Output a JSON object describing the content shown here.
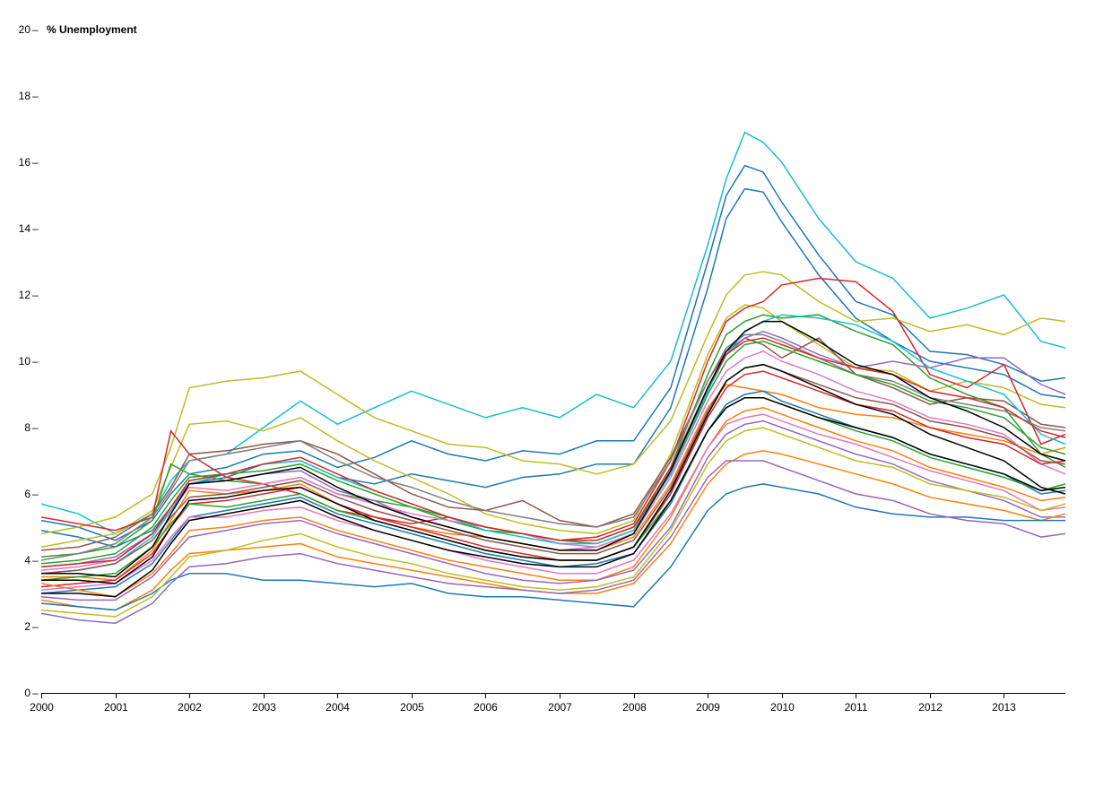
{
  "chart_data": {
    "type": "line",
    "title": "",
    "xlabel": "",
    "ylabel": "% Unemployment",
    "xlim": [
      2000,
      2013.83
    ],
    "ylim": [
      0,
      20
    ],
    "x_ticks": [
      "2000",
      "2001",
      "2002",
      "2003",
      "2004",
      "2005",
      "2006",
      "2007",
      "2008",
      "2009",
      "2010",
      "2011",
      "2012",
      "2013"
    ],
    "y_ticks": [
      "0",
      "2",
      "4",
      "6",
      "8",
      "10",
      "12",
      "14",
      "16",
      "18",
      "20"
    ],
    "grid": false,
    "legend": "none",
    "x": [
      2000,
      2000.5,
      2001,
      2001.5,
      2001.75,
      2002,
      2002.5,
      2003,
      2003.5,
      2004,
      2004.5,
      2005,
      2005.5,
      2006,
      2006.5,
      2007,
      2007.5,
      2008,
      2008.5,
      2009,
      2009.25,
      2009.5,
      2009.75,
      2010,
      2010.5,
      2011,
      2011.5,
      2012,
      2012.5,
      2013,
      2013.5,
      2013.83
    ],
    "series": [
      {
        "color": "#17becf",
        "values": [
          5.7,
          5.4,
          4.8,
          5.4,
          6.4,
          7.0,
          7.2,
          8.0,
          8.8,
          8.1,
          8.6,
          9.1,
          8.7,
          8.3,
          8.6,
          8.3,
          9.0,
          8.6,
          10.0,
          13.5,
          15.5,
          16.9,
          16.6,
          16.0,
          14.3,
          13.0,
          12.5,
          11.3,
          11.6,
          12.0,
          10.6,
          10.4
        ]
      },
      {
        "color": "#1f77b4",
        "values": [
          5.2,
          5.0,
          4.6,
          5.2,
          6.0,
          6.6,
          6.8,
          7.2,
          7.3,
          6.8,
          7.1,
          7.6,
          7.2,
          7.0,
          7.3,
          7.2,
          7.6,
          7.6,
          9.2,
          13.0,
          15.0,
          15.9,
          15.7,
          14.8,
          13.2,
          11.8,
          11.4,
          10.3,
          10.2,
          9.9,
          9.4,
          9.5
        ]
      },
      {
        "color": "#1f77b4",
        "values": [
          4.9,
          4.7,
          4.4,
          4.9,
          5.6,
          6.3,
          6.5,
          6.9,
          7.0,
          6.5,
          6.3,
          6.6,
          6.4,
          6.2,
          6.5,
          6.6,
          6.9,
          6.9,
          8.6,
          12.2,
          14.3,
          15.2,
          15.1,
          14.2,
          12.6,
          11.3,
          10.6,
          10.0,
          9.8,
          9.6,
          9.0,
          8.9
        ]
      },
      {
        "color": "#bcbd22",
        "values": [
          4.8,
          5.0,
          5.3,
          6.0,
          7.4,
          9.2,
          9.4,
          9.5,
          9.7,
          9.0,
          8.3,
          7.9,
          7.5,
          7.4,
          7.0,
          6.9,
          6.6,
          6.9,
          8.2,
          10.8,
          12.0,
          12.6,
          12.7,
          12.6,
          11.8,
          11.2,
          11.3,
          10.9,
          11.1,
          10.8,
          11.3,
          11.2
        ]
      },
      {
        "color": "#bcbd22",
        "values": [
          4.4,
          4.6,
          4.8,
          5.5,
          6.8,
          8.1,
          8.2,
          7.9,
          8.3,
          7.6,
          7.0,
          6.5,
          6.0,
          5.4,
          5.1,
          4.9,
          4.8,
          5.2,
          7.2,
          10.2,
          11.3,
          11.7,
          11.6,
          11.2,
          10.5,
          9.8,
          9.7,
          9.1,
          9.4,
          9.2,
          8.7,
          8.6
        ]
      },
      {
        "color": "#d62728",
        "values": [
          5.3,
          5.1,
          4.9,
          5.3,
          7.9,
          7.2,
          6.5,
          6.3,
          6.0,
          5.5,
          5.3,
          5.1,
          5.3,
          5.0,
          4.8,
          4.6,
          4.7,
          5.1,
          7.0,
          10.0,
          11.2,
          11.6,
          11.8,
          12.3,
          12.5,
          12.4,
          11.5,
          9.6,
          9.2,
          9.9,
          7.5,
          7.8
        ]
      },
      {
        "color": "#8c564b",
        "values": [
          4.3,
          4.4,
          4.7,
          5.4,
          6.2,
          7.2,
          7.3,
          7.5,
          7.6,
          7.2,
          6.6,
          6.0,
          5.6,
          5.5,
          5.8,
          5.2,
          5.0,
          5.4,
          7.1,
          9.4,
          10.3,
          10.7,
          10.5,
          10.1,
          10.7,
          9.6,
          9.2,
          8.7,
          8.9,
          8.8,
          8.1,
          8.0
        ]
      },
      {
        "color": "#2ca02c",
        "values": [
          4.1,
          4.2,
          4.4,
          5.2,
          6.9,
          6.6,
          6.4,
          6.3,
          6.5,
          6.0,
          5.8,
          5.6,
          5.2,
          4.9,
          4.8,
          4.6,
          4.5,
          4.9,
          6.8,
          9.6,
          10.8,
          11.2,
          11.4,
          11.3,
          11.4,
          10.9,
          10.5,
          9.5,
          9.0,
          8.6,
          7.2,
          6.8
        ]
      },
      {
        "color": "#9467bd",
        "values": [
          3.8,
          3.9,
          4.1,
          4.8,
          5.6,
          6.3,
          6.4,
          6.6,
          6.7,
          6.1,
          5.8,
          5.3,
          5.0,
          4.7,
          4.5,
          4.3,
          4.4,
          4.8,
          6.7,
          9.2,
          10.2,
          10.7,
          10.9,
          10.7,
          10.2,
          9.8,
          10.0,
          9.8,
          10.1,
          10.1,
          9.3,
          9.0
        ]
      },
      {
        "color": "#ff7f0e",
        "values": [
          3.5,
          3.5,
          3.4,
          4.3,
          5.2,
          6.1,
          6.0,
          6.1,
          6.3,
          5.7,
          5.3,
          5.0,
          4.8,
          4.7,
          4.5,
          4.3,
          4.3,
          4.7,
          6.3,
          8.6,
          9.3,
          9.2,
          9.1,
          9.0,
          8.6,
          8.4,
          8.3,
          8.0,
          7.8,
          7.6,
          7.2,
          7.4
        ]
      },
      {
        "color": "#e377c2",
        "values": [
          3.7,
          3.8,
          4.0,
          4.8,
          5.5,
          6.2,
          6.1,
          6.3,
          6.5,
          6.0,
          5.7,
          5.4,
          5.2,
          5.0,
          4.8,
          4.5,
          4.4,
          4.8,
          6.5,
          8.8,
          9.7,
          10.1,
          10.3,
          10.0,
          9.6,
          9.1,
          8.8,
          8.3,
          8.1,
          7.8,
          6.9,
          6.6
        ]
      },
      {
        "color": "#7f7f7f",
        "values": [
          4.0,
          4.2,
          4.5,
          5.3,
          6.1,
          7.0,
          7.2,
          7.4,
          7.6,
          7.0,
          6.5,
          6.2,
          5.8,
          5.5,
          5.3,
          5.1,
          5.0,
          5.3,
          7.0,
          9.4,
          10.4,
          10.8,
          10.8,
          10.6,
          10.1,
          9.6,
          9.4,
          8.9,
          8.7,
          8.5,
          8.0,
          7.9
        ]
      },
      {
        "color": "#2ca02c",
        "values": [
          3.9,
          4.0,
          4.2,
          5.0,
          5.8,
          6.5,
          6.6,
          6.7,
          6.9,
          6.4,
          6.0,
          5.6,
          5.3,
          5.0,
          4.8,
          4.6,
          4.6,
          5.0,
          6.6,
          9.0,
          10.0,
          10.5,
          10.6,
          10.4,
          10.0,
          9.6,
          9.3,
          8.8,
          8.6,
          8.3,
          7.4,
          7.2
        ]
      },
      {
        "color": "#17becf",
        "values": [
          3.6,
          3.7,
          3.9,
          4.7,
          5.5,
          6.3,
          6.6,
          6.9,
          7.0,
          6.5,
          6.1,
          5.7,
          5.3,
          4.9,
          4.7,
          4.5,
          4.5,
          4.9,
          6.6,
          9.1,
          10.2,
          10.9,
          11.2,
          11.4,
          11.3,
          11.1,
          10.6,
          9.8,
          9.4,
          9.0,
          7.8,
          7.5
        ]
      },
      {
        "color": "#d62728",
        "values": [
          3.2,
          3.3,
          3.4,
          4.2,
          5.0,
          5.7,
          5.8,
          6.0,
          6.2,
          5.7,
          5.3,
          5.0,
          4.7,
          4.4,
          4.2,
          4.0,
          4.0,
          4.4,
          6.0,
          8.3,
          9.2,
          9.6,
          9.7,
          9.5,
          9.1,
          8.7,
          8.5,
          8.0,
          7.7,
          7.5,
          6.9,
          7.0
        ]
      },
      {
        "color": "#1f77b4",
        "values": [
          3.0,
          3.1,
          3.2,
          3.9,
          4.6,
          5.3,
          5.5,
          5.7,
          5.9,
          5.4,
          5.1,
          4.8,
          4.5,
          4.2,
          4.0,
          3.8,
          3.9,
          4.2,
          5.7,
          7.9,
          8.7,
          9.0,
          9.1,
          8.8,
          8.4,
          8.0,
          7.7,
          7.2,
          6.9,
          6.6,
          6.0,
          6.1
        ]
      },
      {
        "color": "#ff7f0e",
        "values": [
          3.3,
          3.1,
          2.9,
          3.6,
          4.2,
          4.9,
          5.0,
          5.2,
          5.3,
          4.9,
          4.6,
          4.3,
          4.0,
          3.8,
          3.6,
          3.4,
          3.4,
          3.8,
          5.3,
          7.4,
          8.2,
          8.5,
          8.6,
          8.4,
          8.0,
          7.6,
          7.3,
          6.8,
          6.5,
          6.2,
          5.8,
          5.9
        ]
      },
      {
        "color": "#9467bd",
        "values": [
          2.9,
          2.8,
          2.8,
          3.5,
          4.1,
          4.7,
          4.9,
          5.1,
          5.2,
          4.8,
          4.5,
          4.2,
          3.9,
          3.6,
          3.4,
          3.3,
          3.4,
          3.7,
          5.0,
          7.1,
          7.8,
          8.1,
          8.2,
          8.0,
          7.6,
          7.2,
          6.9,
          6.4,
          6.1,
          5.8,
          5.3,
          5.3
        ]
      },
      {
        "color": "#2ca02c",
        "values": [
          3.4,
          3.5,
          3.6,
          4.4,
          5.1,
          5.7,
          5.6,
          5.8,
          6.0,
          5.5,
          5.2,
          4.9,
          4.6,
          4.3,
          4.1,
          4.0,
          4.0,
          4.4,
          5.8,
          7.9,
          8.6,
          8.9,
          8.9,
          8.7,
          8.3,
          7.9,
          7.6,
          7.1,
          6.8,
          6.5,
          6.1,
          6.3
        ]
      },
      {
        "color": "#e377c2",
        "values": [
          3.1,
          3.2,
          3.3,
          4.0,
          4.7,
          5.3,
          5.3,
          5.5,
          5.6,
          5.2,
          4.9,
          4.6,
          4.3,
          4.0,
          3.8,
          3.6,
          3.6,
          4.0,
          5.4,
          7.4,
          8.1,
          8.3,
          8.4,
          8.2,
          7.8,
          7.5,
          7.1,
          6.7,
          6.4,
          6.1,
          5.5,
          5.6
        ]
      },
      {
        "color": "#8c564b",
        "values": [
          3.6,
          3.7,
          3.9,
          4.6,
          5.3,
          5.9,
          6.0,
          6.2,
          6.4,
          5.9,
          5.5,
          5.2,
          4.9,
          4.6,
          4.4,
          4.2,
          4.2,
          4.6,
          6.2,
          8.5,
          9.4,
          9.8,
          9.9,
          9.7,
          9.3,
          8.9,
          8.7,
          8.2,
          8.0,
          7.7,
          7.0,
          6.9
        ]
      },
      {
        "color": "#ff7f0e",
        "values": [
          2.8,
          2.6,
          2.5,
          3.1,
          3.7,
          4.2,
          4.3,
          4.4,
          4.5,
          4.1,
          3.9,
          3.7,
          3.5,
          3.3,
          3.1,
          3.0,
          3.0,
          3.3,
          4.5,
          6.3,
          6.9,
          7.2,
          7.3,
          7.2,
          6.9,
          6.6,
          6.3,
          5.9,
          5.7,
          5.5,
          5.2,
          5.4
        ]
      },
      {
        "color": "#1f77b4",
        "values": [
          2.7,
          2.6,
          2.5,
          3.0,
          3.4,
          3.6,
          3.6,
          3.4,
          3.4,
          3.3,
          3.2,
          3.3,
          3.0,
          2.9,
          2.9,
          2.8,
          2.7,
          2.6,
          3.8,
          5.5,
          6.0,
          6.2,
          6.3,
          6.2,
          6.0,
          5.6,
          5.4,
          5.3,
          5.3,
          5.2,
          5.2,
          5.2
        ]
      },
      {
        "color": "#9467bd",
        "values": [
          2.4,
          2.2,
          2.1,
          2.7,
          3.3,
          3.8,
          3.9,
          4.1,
          4.2,
          3.9,
          3.7,
          3.5,
          3.3,
          3.2,
          3.1,
          3.0,
          3.1,
          3.4,
          4.7,
          6.5,
          7.0,
          7.0,
          7.0,
          6.8,
          6.4,
          6.0,
          5.8,
          5.4,
          5.2,
          5.1,
          4.7,
          4.8
        ]
      },
      {
        "color": "#bcbd22",
        "values": [
          2.5,
          2.4,
          2.3,
          2.9,
          3.5,
          4.1,
          4.3,
          4.6,
          4.8,
          4.4,
          4.1,
          3.9,
          3.6,
          3.4,
          3.2,
          3.1,
          3.2,
          3.5,
          4.9,
          6.9,
          7.6,
          7.9,
          8.0,
          7.8,
          7.4,
          7.0,
          6.8,
          6.3,
          6.1,
          5.9,
          5.5,
          5.7
        ]
      },
      {
        "color": "#d62728",
        "values": [
          3.8,
          3.9,
          4.0,
          4.8,
          5.6,
          6.4,
          6.6,
          6.9,
          7.1,
          6.6,
          6.1,
          5.7,
          5.3,
          5.0,
          4.8,
          4.6,
          4.6,
          5.0,
          6.8,
          9.2,
          10.2,
          10.6,
          10.7,
          10.5,
          10.1,
          9.8,
          9.6,
          9.1,
          8.9,
          8.6,
          7.9,
          7.7
        ]
      },
      {
        "color": "#000000",
        "values": [
          3.6,
          3.6,
          3.5,
          4.4,
          5.4,
          6.3,
          6.4,
          6.6,
          6.8,
          6.2,
          5.7,
          5.3,
          5.0,
          4.7,
          4.5,
          4.3,
          4.3,
          4.8,
          6.7,
          9.2,
          10.3,
          10.9,
          11.2,
          11.2,
          10.6,
          9.9,
          9.6,
          8.9,
          8.5,
          8.0,
          7.2,
          7.0
        ]
      },
      {
        "color": "#000000",
        "values": [
          3.4,
          3.4,
          3.3,
          4.1,
          5.0,
          5.8,
          5.9,
          6.1,
          6.2,
          5.7,
          5.2,
          4.9,
          4.6,
          4.3,
          4.1,
          4.0,
          4.0,
          4.4,
          6.1,
          8.4,
          9.4,
          9.8,
          9.9,
          9.7,
          9.2,
          8.7,
          8.4,
          7.8,
          7.4,
          7.0,
          6.2,
          6.0
        ]
      },
      {
        "color": "#000000",
        "values": [
          3.0,
          3.0,
          2.9,
          3.7,
          4.5,
          5.2,
          5.4,
          5.6,
          5.8,
          5.3,
          4.9,
          4.6,
          4.3,
          4.1,
          3.9,
          3.8,
          3.8,
          4.2,
          5.8,
          7.9,
          8.6,
          8.9,
          8.9,
          8.7,
          8.3,
          8.0,
          7.7,
          7.2,
          6.9,
          6.6,
          6.1,
          6.2
        ]
      }
    ]
  }
}
